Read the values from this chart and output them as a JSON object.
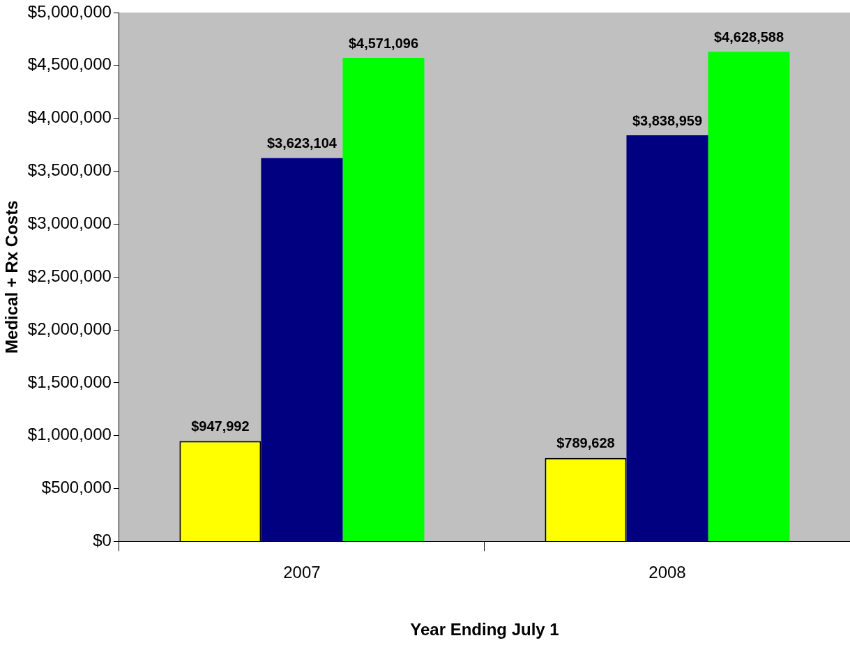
{
  "chart_data": {
    "type": "bar",
    "xlabel": "Year Ending July 1",
    "ylabel": "Medical + Rx Costs",
    "categories": [
      "2007",
      "2008"
    ],
    "series": [
      {
        "color": "#ffff00",
        "values": [
          947992,
          789628
        ],
        "value_labels": [
          "$947,992",
          "$789,628"
        ]
      },
      {
        "color": "#000080",
        "values": [
          3623104,
          3838959
        ],
        "value_labels": [
          "$3,623,104",
          "$3,838,959"
        ]
      },
      {
        "color": "#00ff00",
        "values": [
          4571096,
          4628588
        ],
        "value_labels": [
          "$4,571,096",
          "$4,628,588"
        ]
      }
    ],
    "ylim": [
      0,
      5000000
    ],
    "yticks": [
      {
        "value": 0,
        "label": "$0"
      },
      {
        "value": 500000,
        "label": "$500,000"
      },
      {
        "value": 1000000,
        "label": "$1,000,000"
      },
      {
        "value": 1500000,
        "label": "$1,500,000"
      },
      {
        "value": 2000000,
        "label": "$2,000,000"
      },
      {
        "value": 2500000,
        "label": "$2,500,000"
      },
      {
        "value": 3000000,
        "label": "$3,000,000"
      },
      {
        "value": 3500000,
        "label": "$3,500,000"
      },
      {
        "value": 4000000,
        "label": "$4,000,000"
      },
      {
        "value": 4500000,
        "label": "$4,500,000"
      },
      {
        "value": 5000000,
        "label": "$5,000,000"
      }
    ],
    "grid": false,
    "legend": false
  }
}
